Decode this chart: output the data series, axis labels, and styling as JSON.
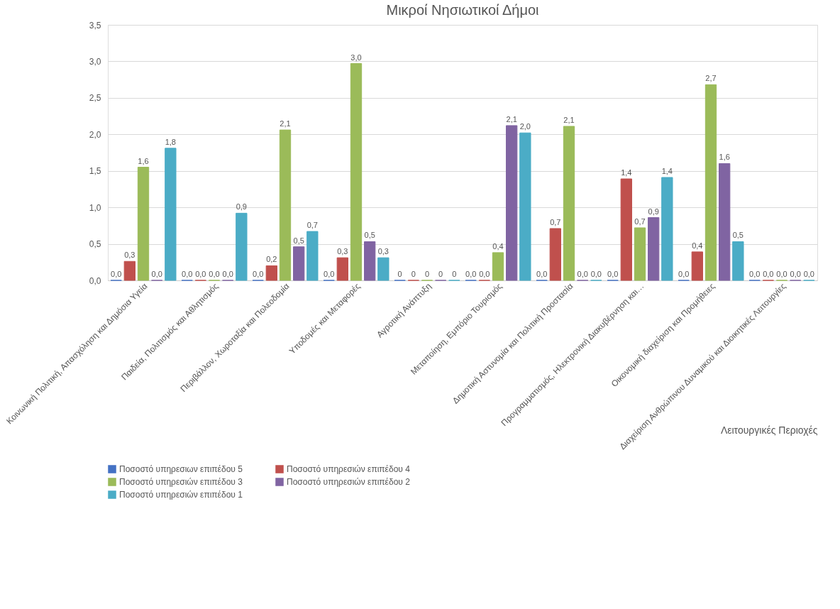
{
  "chart_data": {
    "type": "bar",
    "title": "Μικροί Νησιωτικοί Δήμοι",
    "xlabel": "Λειτουργικές Περιοχές",
    "categories": [
      "Κοινωνική Πολιτική, Απασχόληση και Δημόσια Υγεία",
      "Παιδεία, Πολιτισμός και Αθλητισμός",
      "Περιβάλλον, Χωροταξία και Πολεοδομία",
      "Υποδομές και Μεταφορές",
      "Αγροτική Ανάπτυξη",
      "Μεταποίηση, Εμπόριο Τουρισμός",
      "Δημοτική Αστυνομία και Πολιτική Προστασία",
      "Προγραμματισμός, Ηλεκτρονική Διακυβέρνηση και…",
      "Οικονομική διαχείριση και Προμήθειες",
      "Διαχείριση Ανθρώπινου Δυναμικού και Διοικητικές Λειτουργίες"
    ],
    "series": [
      {
        "name": "Ποσοστό υπηρεσιων επιπέδου 5",
        "color": "#4472c4",
        "values": [
          0,
          0,
          0,
          0,
          0,
          0,
          0,
          0,
          0,
          0
        ],
        "value_labels": [
          "0,0",
          "0,0",
          "0,0",
          "0,0",
          "0",
          "0,0",
          "0,0",
          "0,0",
          "0,0",
          "0,0"
        ]
      },
      {
        "name": "Ποσοστό υπηρεσιών επιπέδου 4",
        "color": "#c0504d",
        "values": [
          0.26,
          0,
          0.2,
          0.31,
          0,
          0,
          0.71,
          1.39,
          0.39,
          0
        ],
        "value_labels": [
          "0,3",
          "0,0",
          "0,2",
          "0,3",
          "0",
          "0,0",
          "0,7",
          "1,4",
          "0,4",
          "0,0"
        ]
      },
      {
        "name": "Ποσοστό υπηρεσιών επιπέδου 3",
        "color": "#9bbb59",
        "values": [
          1.55,
          0,
          2.06,
          2.97,
          0,
          0.38,
          2.11,
          0.72,
          2.68,
          0
        ],
        "value_labels": [
          "1,6",
          "0,0",
          "2,1",
          "3,0",
          "0",
          "0,4",
          "2,1",
          "0,7",
          "2,7",
          "0,0"
        ]
      },
      {
        "name": "Ποσοστό υπηρεσιών επιπέδου 2",
        "color": "#8064a2",
        "values": [
          0,
          0,
          0.46,
          0.53,
          0,
          2.12,
          0,
          0.86,
          1.6,
          0
        ],
        "value_labels": [
          "0,0",
          "0,0",
          "0,5",
          "0,5",
          "0",
          "2,1",
          "0,0",
          "0,9",
          "1,6",
          "0,0"
        ]
      },
      {
        "name": "Ποσοστό υπηρεσιών επιπέδου  1",
        "color": "#4bacc6",
        "values": [
          1.81,
          0.92,
          0.67,
          0.31,
          0,
          2.02,
          0,
          1.41,
          0.53,
          0
        ],
        "value_labels": [
          "1,8",
          "0,9",
          "0,7",
          "0,3",
          "0",
          "2,0",
          "0,0",
          "1,4",
          "0,5",
          "0,0"
        ]
      }
    ],
    "ylim": [
      0,
      3.5
    ],
    "yticks": [
      {
        "value": 0,
        "label": "0,0"
      },
      {
        "value": 0.5,
        "label": "0,5"
      },
      {
        "value": 1,
        "label": "1,0"
      },
      {
        "value": 1.5,
        "label": "1,5"
      },
      {
        "value": 2,
        "label": "2,0"
      },
      {
        "value": 2.5,
        "label": "2,5"
      },
      {
        "value": 3,
        "label": "3,0"
      },
      {
        "value": 3.5,
        "label": "3,5"
      }
    ],
    "grid": "y",
    "legend": "bottom"
  }
}
